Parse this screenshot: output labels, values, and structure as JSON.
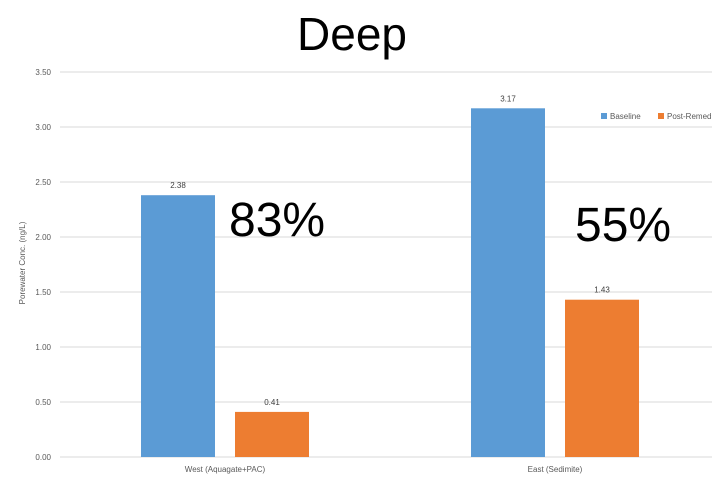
{
  "chart_data": {
    "type": "bar",
    "title": "Deep",
    "categories": [
      "West (Aquagate+PAC)",
      "East (Sedimite)"
    ],
    "series": [
      {
        "name": "Baseline",
        "color": "#5b9bd5",
        "values": [
          2.38,
          3.17
        ]
      },
      {
        "name": "Post-Remed",
        "color": "#ed7d31",
        "values": [
          0.41,
          1.43
        ]
      }
    ],
    "data_labels": [
      [
        "2.38",
        "3.17"
      ],
      [
        "0.41",
        "1.43"
      ]
    ],
    "ylabel": "Porewater Conc. (ng/L)",
    "xlabel": "",
    "ylim": [
      0,
      3.5
    ],
    "yticks": [
      "0.00",
      "0.50",
      "1.00",
      "1.50",
      "2.00",
      "2.50",
      "3.00",
      "3.50"
    ],
    "grid": true,
    "legend_position": "top-right",
    "annotations": [
      "83%",
      "55%"
    ]
  }
}
